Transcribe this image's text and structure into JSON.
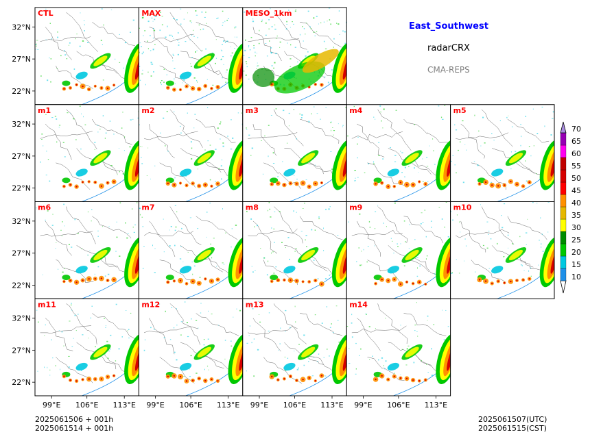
{
  "info": {
    "region": "East_Southwest",
    "variable": "radarCRX",
    "model": "CMA-REPS"
  },
  "footer": {
    "left_line1": "2025061506  +  001h",
    "left_line2": "2025061514  +  001h",
    "right_line1": "2025061507(UTC)",
    "right_line2": "2025061515(CST)"
  },
  "colors": {
    "panel_label": "#ff0000",
    "region_title": "#0000ff",
    "model_text": "#808080"
  },
  "chart_data": {
    "type": "heatmap",
    "panels": [
      {
        "label": "CTL"
      },
      {
        "label": "MAX"
      },
      {
        "label": "MESO_1km"
      },
      {
        "label": "m1"
      },
      {
        "label": "m2"
      },
      {
        "label": "m3"
      },
      {
        "label": "m4"
      },
      {
        "label": "m5"
      },
      {
        "label": "m6"
      },
      {
        "label": "m7"
      },
      {
        "label": "m8"
      },
      {
        "label": "m9"
      },
      {
        "label": "m10"
      },
      {
        "label": "m11"
      },
      {
        "label": "m12"
      },
      {
        "label": "m13"
      },
      {
        "label": "m14"
      }
    ],
    "x_ticks": [
      "99°E",
      "106°E",
      "113°E"
    ],
    "y_ticks": [
      "32°N",
      "27°N",
      "22°N"
    ],
    "colorbar": {
      "ticks": [
        "10",
        "15",
        "20",
        "25",
        "30",
        "35",
        "40",
        "45",
        "50",
        "55",
        "60",
        "65",
        "70"
      ],
      "colors": [
        "#1e90e8",
        "#00c8e0",
        "#00c800",
        "#008c00",
        "#ffff00",
        "#e6b800",
        "#ff9000",
        "#ff0000",
        "#d60000",
        "#c00000",
        "#ff00f0",
        "#9600b4",
        "#a88ce0"
      ],
      "extend": "both"
    }
  }
}
